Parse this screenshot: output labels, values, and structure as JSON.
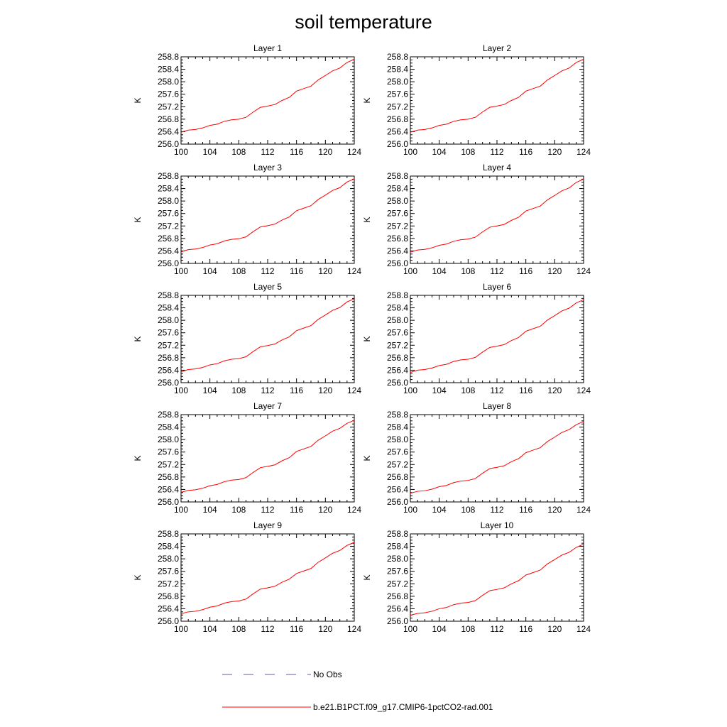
{
  "chart_data": {
    "type": "line",
    "title": "soil temperature",
    "x_ticks": [
      100,
      104,
      108,
      112,
      116,
      120,
      124
    ],
    "y_ticks": [
      256.0,
      256.4,
      256.8,
      257.2,
      257.6,
      258.0,
      258.4,
      258.8
    ],
    "xlim": [
      100,
      124
    ],
    "ylim": [
      256.0,
      258.8
    ],
    "ylabel": "K",
    "grid": false,
    "legend_placement": "bottom",
    "legend": [
      {
        "label": "No Obs",
        "style": "dashed",
        "color": "#5b5bb0"
      },
      {
        "label": "b.e21.B1PCT.f09_g17.CMIP6-1pctCO2-rad.001",
        "style": "solid",
        "color": "#ff0000"
      }
    ],
    "x": [
      100,
      101,
      102,
      103,
      104,
      105,
      106,
      107,
      108,
      109,
      110,
      111,
      112,
      113,
      114,
      115,
      116,
      117,
      118,
      119,
      120,
      121,
      122,
      123,
      124
    ],
    "panels": [
      {
        "name": "Layer 1",
        "values": [
          256.38,
          256.45,
          256.47,
          256.52,
          256.6,
          256.64,
          256.73,
          256.78,
          256.8,
          256.86,
          257.03,
          257.18,
          257.22,
          257.27,
          257.4,
          257.5,
          257.7,
          257.78,
          257.86,
          258.06,
          258.2,
          258.35,
          258.44,
          258.62,
          258.72
        ]
      },
      {
        "name": "Layer 2",
        "values": [
          256.38,
          256.45,
          256.47,
          256.52,
          256.6,
          256.64,
          256.73,
          256.78,
          256.8,
          256.86,
          257.03,
          257.18,
          257.22,
          257.27,
          257.4,
          257.5,
          257.7,
          257.78,
          257.86,
          258.06,
          258.2,
          258.35,
          258.44,
          258.62,
          258.72
        ]
      },
      {
        "name": "Layer 3",
        "values": [
          256.37,
          256.44,
          256.46,
          256.51,
          256.59,
          256.63,
          256.72,
          256.77,
          256.79,
          256.85,
          257.02,
          257.17,
          257.21,
          257.26,
          257.39,
          257.49,
          257.69,
          257.77,
          257.85,
          258.05,
          258.19,
          258.34,
          258.43,
          258.61,
          258.71
        ]
      },
      {
        "name": "Layer 4",
        "values": [
          256.36,
          256.43,
          256.45,
          256.5,
          256.58,
          256.62,
          256.71,
          256.76,
          256.78,
          256.84,
          257.01,
          257.16,
          257.2,
          257.25,
          257.38,
          257.48,
          257.68,
          257.76,
          257.84,
          258.04,
          258.18,
          258.33,
          258.42,
          258.6,
          258.7
        ]
      },
      {
        "name": "Layer 5",
        "values": [
          256.35,
          256.42,
          256.44,
          256.49,
          256.57,
          256.61,
          256.7,
          256.75,
          256.77,
          256.83,
          257.0,
          257.15,
          257.19,
          257.24,
          257.37,
          257.47,
          257.67,
          257.75,
          257.83,
          258.03,
          258.17,
          258.32,
          258.41,
          258.59,
          258.69
        ]
      },
      {
        "name": "Layer 6",
        "values": [
          256.33,
          256.4,
          256.42,
          256.47,
          256.55,
          256.59,
          256.68,
          256.73,
          256.75,
          256.81,
          256.98,
          257.13,
          257.17,
          257.22,
          257.35,
          257.45,
          257.65,
          257.73,
          257.81,
          258.01,
          258.15,
          258.3,
          258.39,
          258.56,
          258.66
        ]
      },
      {
        "name": "Layer 7",
        "values": [
          256.31,
          256.37,
          256.39,
          256.44,
          256.52,
          256.56,
          256.65,
          256.7,
          256.72,
          256.78,
          256.95,
          257.1,
          257.14,
          257.19,
          257.32,
          257.42,
          257.62,
          257.7,
          257.78,
          257.98,
          258.12,
          258.27,
          258.36,
          258.52,
          258.62
        ]
      },
      {
        "name": "Layer 8",
        "values": [
          256.28,
          256.34,
          256.36,
          256.41,
          256.49,
          256.53,
          256.62,
          256.67,
          256.69,
          256.75,
          256.92,
          257.07,
          257.11,
          257.16,
          257.29,
          257.39,
          257.58,
          257.66,
          257.74,
          257.94,
          258.08,
          258.23,
          258.32,
          258.48,
          258.58
        ]
      },
      {
        "name": "Layer 9",
        "values": [
          256.24,
          256.3,
          256.32,
          256.37,
          256.45,
          256.49,
          256.58,
          256.63,
          256.65,
          256.71,
          256.88,
          257.03,
          257.07,
          257.12,
          257.25,
          257.35,
          257.53,
          257.61,
          257.69,
          257.89,
          258.03,
          258.18,
          258.27,
          258.43,
          258.53
        ]
      },
      {
        "name": "Layer 10",
        "values": [
          256.19,
          256.25,
          256.27,
          256.32,
          256.4,
          256.44,
          256.53,
          256.58,
          256.6,
          256.66,
          256.83,
          256.98,
          257.02,
          257.07,
          257.2,
          257.3,
          257.48,
          257.56,
          257.64,
          257.84,
          257.98,
          258.12,
          258.21,
          258.37,
          258.47
        ]
      }
    ]
  }
}
